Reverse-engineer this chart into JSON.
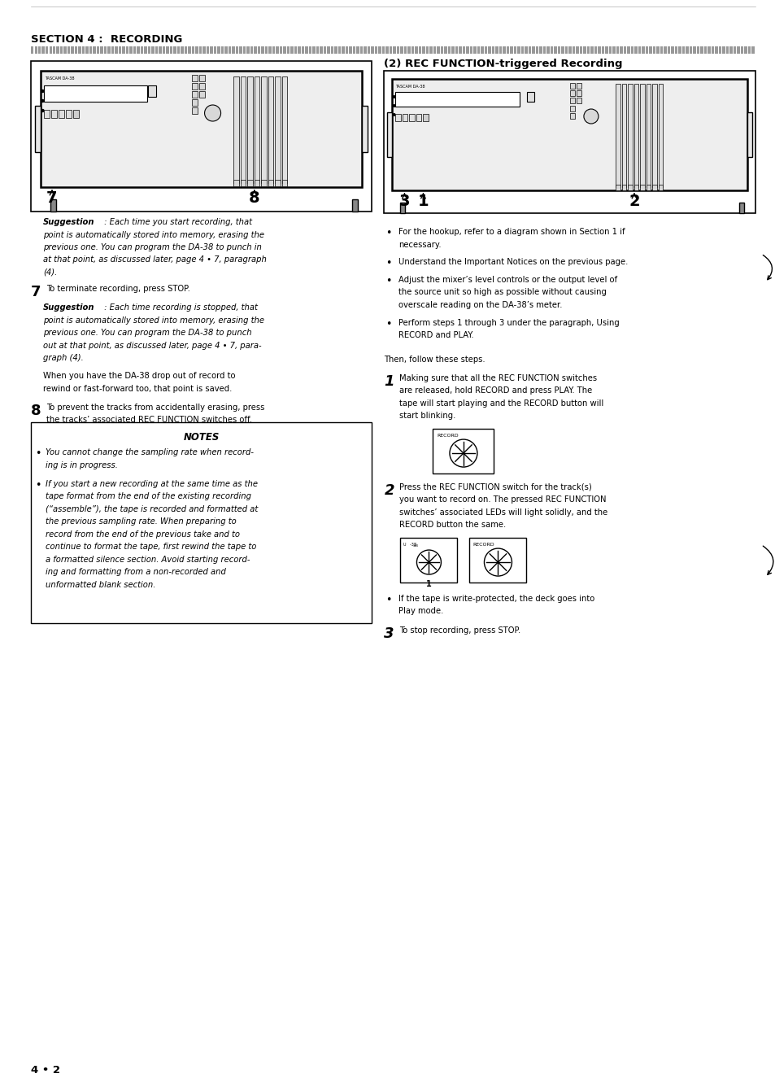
{
  "bg_color": "#ffffff",
  "page_width": 9.54,
  "page_height": 13.41,
  "dpi": 100,
  "section_title": "SECTION 4 :  RECORDING",
  "right_heading": "(2) REC FUNCTION-triggered Recording",
  "suggestion1_first": " : Each time you start recording, that",
  "suggestion1_rest": [
    "point is automatically stored into memory, erasing the",
    "previous one. You can program the DA-38 to punch in",
    "at that point, as discussed later, page 4 • 7, paragraph",
    "(4)."
  ],
  "step7_text": "To terminate recording, press STOP.",
  "suggestion2_first": " : Each time recording is stopped, that",
  "suggestion2_rest": [
    "point is automatically stored into memory, erasing the",
    "previous one. You can program the DA-38 to punch",
    "out at that point, as discussed later, page 4 • 7, para-",
    "graph (4)."
  ],
  "when_lines": [
    "When you have the DA-38 drop out of record to",
    "rewind or fast-forward too, that point is saved."
  ],
  "step8_lines": [
    "To prevent the tracks from accidentally erasing, press",
    "the tracks’ associated REC FUNCTION switches off."
  ],
  "notes_title": "NOTES",
  "notes_bullet1_lines": [
    "You cannot change the sampling rate when record-",
    "ing is in progress."
  ],
  "notes_bullet2_lines": [
    "If you start a new recording at the same time as the",
    "tape format from the end of the existing recording",
    "(“assemble”), the tape is recorded and formatted at",
    "the previous sampling rate. When preparing to",
    "record from the end of the previous take and to",
    "continue to format the tape, first rewind the tape to",
    "a formatted silence section. Avoid starting record-",
    "ing and formatting from a non-recorded and",
    "unformatted blank section."
  ],
  "bullet1_lines": [
    "For the hookup, refer to a diagram shown in Section 1 if",
    "necessary."
  ],
  "bullet2_lines": [
    "Understand the Important Notices on the previous page."
  ],
  "bullet3_lines": [
    "Adjust the mixer’s level controls or the output level of",
    "the source unit so high as possible without causing",
    "overscale reading on the DA-38’s meter."
  ],
  "bullet4_lines": [
    "Perform steps 1 through 3 under the paragraph, Using",
    "RECORD and PLAY."
  ],
  "then_follow": "Then, follow these steps.",
  "step1_lines": [
    "Making sure that all the REC FUNCTION switches",
    "are released, hold RECORD and press PLAY. The",
    "tape will start playing and the RECORD button will",
    "start blinking."
  ],
  "step2_lines": [
    "Press the REC FUNCTION switch for the track(s)",
    "you want to record on. The pressed REC FUNCTION",
    "switches’ associated LEDs will light solidly, and the",
    "RECORD button the same."
  ],
  "bullet_iftape_lines": [
    "If the tape is write-protected, the deck goes into",
    "Play mode."
  ],
  "step3_text": "To stop recording, press STOP.",
  "footer_text": "4 • 2"
}
